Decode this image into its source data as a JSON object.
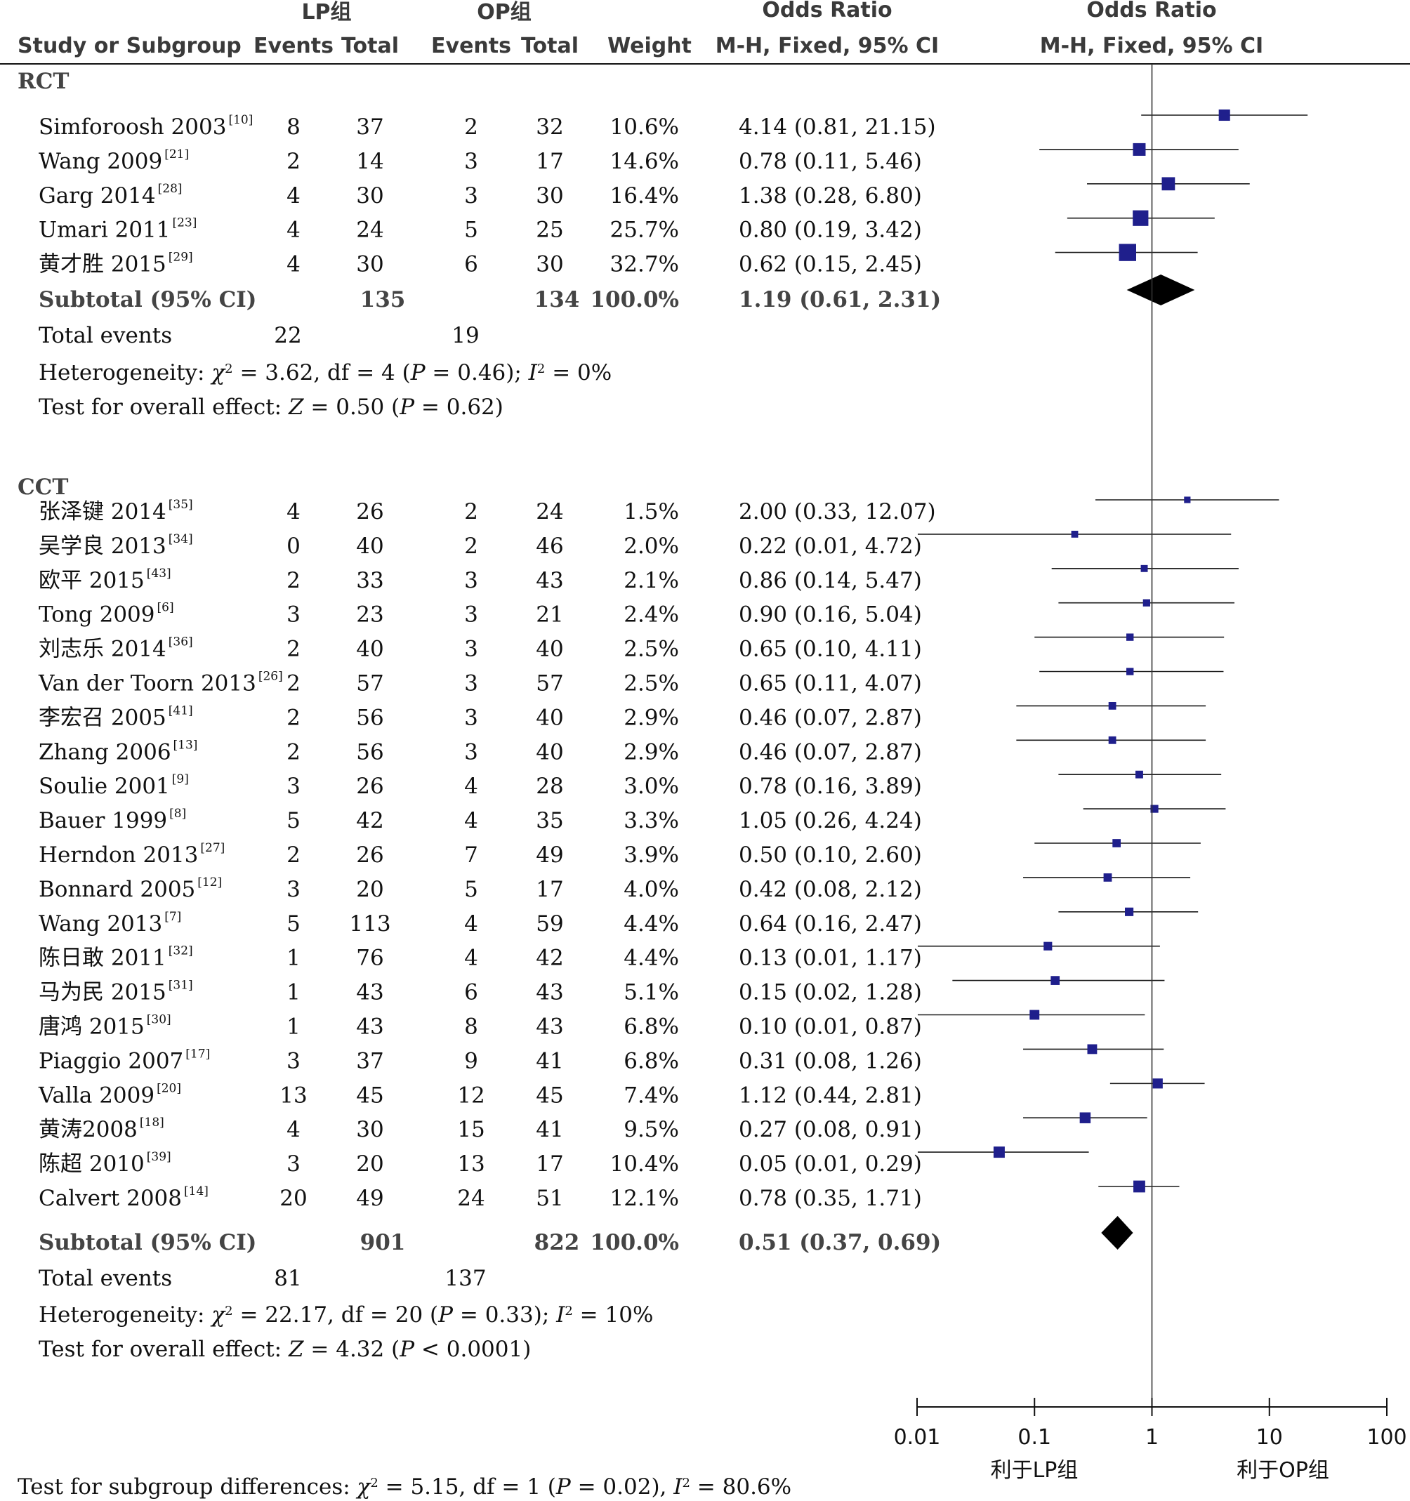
{
  "header": {
    "group1": "LP组",
    "group2": "OP组",
    "odds_ratio": "Odds Ratio",
    "odds_ratio_plot": "Odds Ratio",
    "study": "Study or Subgroup",
    "events1": "Events",
    "total1": "Total",
    "events2": "Events",
    "total2": "Total",
    "weight": "Weight",
    "method": "M-H, Fixed, 95% CI",
    "method_plot": "M-H, Fixed, 95% CI"
  },
  "chart_data": {
    "type": "forest",
    "scale": "log",
    "x_ticks": [
      "0.01",
      "0.1",
      "1",
      "10",
      "100"
    ],
    "x_tick_values": [
      0.01,
      0.1,
      1,
      10,
      100
    ],
    "xlim": [
      0.01,
      100
    ],
    "reference_line": 1,
    "favours_left": "利于LP组",
    "favours_right": "利于OP组",
    "square_color": "#1f1f8c",
    "subgroups": [
      {
        "name": "RCT",
        "studies": [
          {
            "study": "Simforoosh 2003",
            "ref": "[10]",
            "e1": "8",
            "n1": "37",
            "e2": "2",
            "n2": "32",
            "weight": "10.6%",
            "ci_text": "4.14 (0.81, 21.15)",
            "or": 4.14,
            "lo": 0.81,
            "hi": 21.15
          },
          {
            "study": "Wang 2009",
            "ref": "[21]",
            "e1": "2",
            "n1": "14",
            "e2": "3",
            "n2": "17",
            "weight": "14.6%",
            "ci_text": "0.78 (0.11, 5.46)",
            "or": 0.78,
            "lo": 0.11,
            "hi": 5.46
          },
          {
            "study": "Garg 2014",
            "ref": "[28]",
            "e1": "4",
            "n1": "30",
            "e2": "3",
            "n2": "30",
            "weight": "16.4%",
            "ci_text": "1.38 (0.28, 6.80)",
            "or": 1.38,
            "lo": 0.28,
            "hi": 6.8
          },
          {
            "study": "Umari 2011",
            "ref": "[23]",
            "e1": "4",
            "n1": "24",
            "e2": "5",
            "n2": "25",
            "weight": "25.7%",
            "ci_text": "0.80 (0.19, 3.42)",
            "or": 0.8,
            "lo": 0.19,
            "hi": 3.42
          },
          {
            "study": "黄才胜 2015",
            "ref": "[29]",
            "e1": "4",
            "n1": "30",
            "e2": "6",
            "n2": "30",
            "weight": "32.7%",
            "ci_text": "0.62 (0.15, 2.45)",
            "or": 0.62,
            "lo": 0.15,
            "hi": 2.45
          }
        ],
        "subtotal": {
          "label": "Subtotal (95% CI)",
          "n1": "135",
          "n2": "134",
          "weight": "100.0%",
          "ci_text": "1.19 (0.61, 2.31)",
          "or": 1.19,
          "lo": 0.61,
          "hi": 2.31
        },
        "total_events_label": "Total events",
        "total_events_1": "22",
        "total_events_2": "19",
        "heterogeneity": [
          "Heterogeneity: ",
          "χ",
          "2",
          " = 3.62, df = 4 (",
          "P",
          " = 0.46); ",
          "I",
          "2",
          " = 0%"
        ],
        "overall_effect": [
          "Test for overall effect: ",
          "Z",
          " = 0.50 (",
          "P",
          " = 0.62)"
        ]
      },
      {
        "name": "CCT",
        "studies": [
          {
            "study": "张泽键 2014",
            "ref": "[35]",
            "e1": "4",
            "n1": "26",
            "e2": "2",
            "n2": "24",
            "weight": "1.5%",
            "ci_text": "2.00 (0.33, 12.07)",
            "or": 2.0,
            "lo": 0.33,
            "hi": 12.07
          },
          {
            "study": "吴学良 2013",
            "ref": "[34]",
            "e1": "0",
            "n1": "40",
            "e2": "2",
            "n2": "46",
            "weight": "2.0%",
            "ci_text": "0.22 (0.01, 4.72)",
            "or": 0.22,
            "lo": 0.01,
            "hi": 4.72
          },
          {
            "study": "欧平 2015",
            "ref": "[43]",
            "e1": "2",
            "n1": "33",
            "e2": "3",
            "n2": "43",
            "weight": "2.1%",
            "ci_text": "0.86 (0.14, 5.47)",
            "or": 0.86,
            "lo": 0.14,
            "hi": 5.47
          },
          {
            "study": "Tong 2009",
            "ref": "[6]",
            "e1": "3",
            "n1": "23",
            "e2": "3",
            "n2": "21",
            "weight": "2.4%",
            "ci_text": "0.90 (0.16, 5.04)",
            "or": 0.9,
            "lo": 0.16,
            "hi": 5.04
          },
          {
            "study": "刘志乐 2014",
            "ref": "[36]",
            "e1": "2",
            "n1": "40",
            "e2": "3",
            "n2": "40",
            "weight": "2.5%",
            "ci_text": "0.65 (0.10, 4.11)",
            "or": 0.65,
            "lo": 0.1,
            "hi": 4.11
          },
          {
            "study": "Van der Toorn 2013",
            "ref": "[26]",
            "e1": "2",
            "n1": "57",
            "e2": "3",
            "n2": "57",
            "weight": "2.5%",
            "ci_text": "0.65 (0.11, 4.07)",
            "or": 0.65,
            "lo": 0.11,
            "hi": 4.07
          },
          {
            "study": "李宏召 2005",
            "ref": "[41]",
            "e1": "2",
            "n1": "56",
            "e2": "3",
            "n2": "40",
            "weight": "2.9%",
            "ci_text": "0.46 (0.07, 2.87)",
            "or": 0.46,
            "lo": 0.07,
            "hi": 2.87
          },
          {
            "study": "Zhang 2006",
            "ref": "[13]",
            "e1": "2",
            "n1": "56",
            "e2": "3",
            "n2": "40",
            "weight": "2.9%",
            "ci_text": "0.46 (0.07, 2.87)",
            "or": 0.46,
            "lo": 0.07,
            "hi": 2.87
          },
          {
            "study": "Soulie 2001",
            "ref": "[9]",
            "e1": "3",
            "n1": "26",
            "e2": "4",
            "n2": "28",
            "weight": "3.0%",
            "ci_text": "0.78 (0.16, 3.89)",
            "or": 0.78,
            "lo": 0.16,
            "hi": 3.89
          },
          {
            "study": "Bauer 1999",
            "ref": "[8]",
            "e1": "5",
            "n1": "42",
            "e2": "4",
            "n2": "35",
            "weight": "3.3%",
            "ci_text": "1.05 (0.26, 4.24)",
            "or": 1.05,
            "lo": 0.26,
            "hi": 4.24
          },
          {
            "study": "Herndon 2013",
            "ref": "[27]",
            "e1": "2",
            "n1": "26",
            "e2": "7",
            "n2": "49",
            "weight": "3.9%",
            "ci_text": "0.50 (0.10, 2.60)",
            "or": 0.5,
            "lo": 0.1,
            "hi": 2.6
          },
          {
            "study": "Bonnard 2005",
            "ref": "[12]",
            "e1": "3",
            "n1": "20",
            "e2": "5",
            "n2": "17",
            "weight": "4.0%",
            "ci_text": "0.42 (0.08, 2.12)",
            "or": 0.42,
            "lo": 0.08,
            "hi": 2.12
          },
          {
            "study": "Wang 2013",
            "ref": "[7]",
            "e1": "5",
            "n1": "113",
            "e2": "4",
            "n2": "59",
            "weight": "4.4%",
            "ci_text": "0.64 (0.16, 2.47)",
            "or": 0.64,
            "lo": 0.16,
            "hi": 2.47
          },
          {
            "study": "陈日敢 2011",
            "ref": "[32]",
            "e1": "1",
            "n1": "76",
            "e2": "4",
            "n2": "42",
            "weight": "4.4%",
            "ci_text": "0.13 (0.01, 1.17)",
            "or": 0.13,
            "lo": 0.01,
            "hi": 1.17
          },
          {
            "study": "马为民 2015",
            "ref": "[31]",
            "e1": "1",
            "n1": "43",
            "e2": "6",
            "n2": "43",
            "weight": "5.1%",
            "ci_text": "0.15 (0.02, 1.28)",
            "or": 0.15,
            "lo": 0.02,
            "hi": 1.28
          },
          {
            "study": "唐鸿 2015",
            "ref": "[30]",
            "e1": "1",
            "n1": "43",
            "e2": "8",
            "n2": "43",
            "weight": "6.8%",
            "ci_text": "0.10 (0.01, 0.87)",
            "or": 0.1,
            "lo": 0.01,
            "hi": 0.87
          },
          {
            "study": "Piaggio 2007",
            "ref": "[17]",
            "e1": "3",
            "n1": "37",
            "e2": "9",
            "n2": "41",
            "weight": "6.8%",
            "ci_text": "0.31 (0.08, 1.26)",
            "or": 0.31,
            "lo": 0.08,
            "hi": 1.26
          },
          {
            "study": "Valla 2009",
            "ref": "[20]",
            "e1": "13",
            "n1": "45",
            "e2": "12",
            "n2": "45",
            "weight": "7.4%",
            "ci_text": "1.12 (0.44, 2.81)",
            "or": 1.12,
            "lo": 0.44,
            "hi": 2.81
          },
          {
            "study": "黄涛2008",
            "ref": "[18]",
            "e1": "4",
            "n1": "30",
            "e2": "15",
            "n2": "41",
            "weight": "9.5%",
            "ci_text": "0.27 (0.08, 0.91)",
            "or": 0.27,
            "lo": 0.08,
            "hi": 0.91
          },
          {
            "study": "陈超 2010",
            "ref": "[39]",
            "e1": "3",
            "n1": "20",
            "e2": "13",
            "n2": "17",
            "weight": "10.4%",
            "ci_text": "0.05 (0.01, 0.29)",
            "or": 0.05,
            "lo": 0.01,
            "hi": 0.29
          },
          {
            "study": "Calvert 2008",
            "ref": "[14]",
            "e1": "20",
            "n1": "49",
            "e2": "24",
            "n2": "51",
            "weight": "12.1%",
            "ci_text": "0.78 (0.35, 1.71)",
            "or": 0.78,
            "lo": 0.35,
            "hi": 1.71
          }
        ],
        "subtotal": {
          "label": "Subtotal (95% CI)",
          "n1": "901",
          "n2": "822",
          "weight": "100.0%",
          "ci_text": "0.51 (0.37, 0.69)",
          "or": 0.51,
          "lo": 0.37,
          "hi": 0.69
        },
        "total_events_label": "Total events",
        "total_events_1": "81",
        "total_events_2": "137",
        "heterogeneity": [
          "Heterogeneity: ",
          "χ",
          "2",
          " = 22.17, df = 20 (",
          "P",
          " = 0.33); ",
          "I",
          "2",
          " = 10%"
        ],
        "overall_effect": [
          "Test for overall effect: ",
          "Z",
          " = 4.32 (",
          "P",
          " < 0.0001)"
        ]
      }
    ],
    "subgroup_differences": [
      "Test for subgroup differences: ",
      "χ",
      "2",
      " = 5.15, df = 1 (",
      "P",
      " = 0.02), ",
      "I",
      "2",
      " = 80.6%"
    ]
  }
}
